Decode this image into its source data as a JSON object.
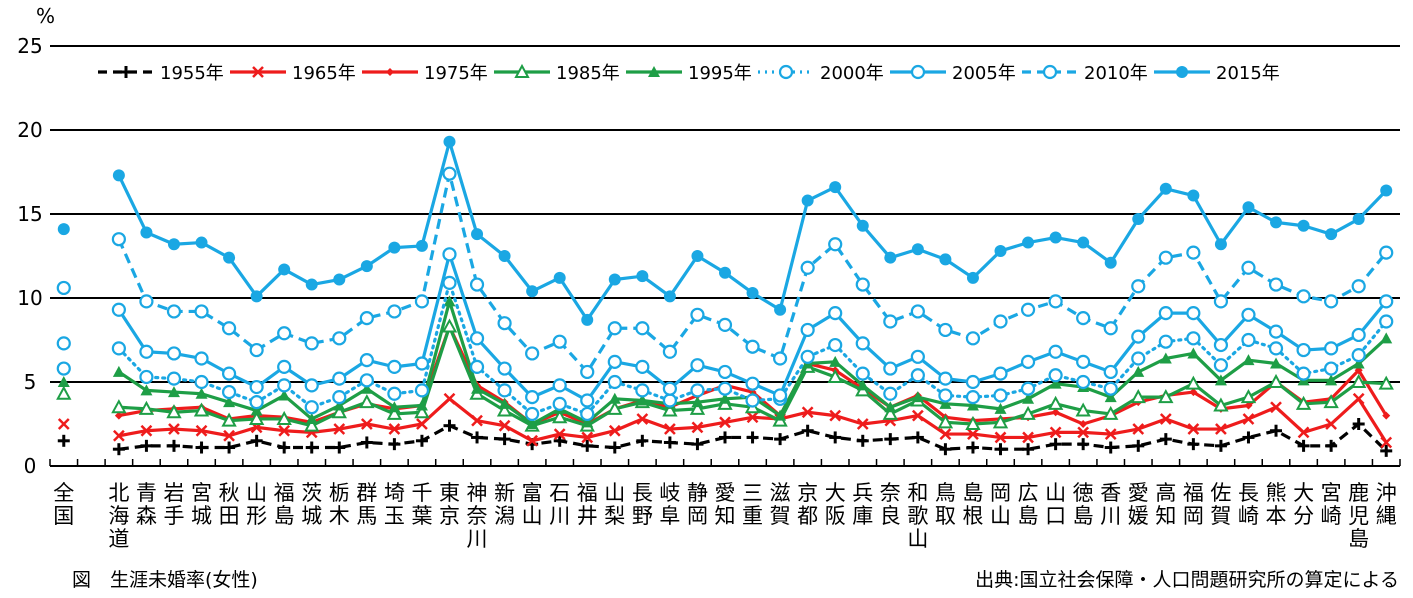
{
  "chart_data": {
    "type": "line",
    "title": "",
    "ylabel_unit": "%",
    "ylim": [
      0,
      25
    ],
    "yticks": [
      0,
      5,
      10,
      15,
      20,
      25
    ],
    "grid": true,
    "legend_position": "top",
    "national_label": [
      "全",
      "国"
    ],
    "categories": [
      [
        "北",
        "海",
        "道"
      ],
      [
        "青",
        "森"
      ],
      [
        "岩",
        "手"
      ],
      [
        "宮",
        "城"
      ],
      [
        "秋",
        "田"
      ],
      [
        "山",
        "形"
      ],
      [
        "福",
        "島"
      ],
      [
        "茨",
        "城"
      ],
      [
        "栃",
        "木"
      ],
      [
        "群",
        "馬"
      ],
      [
        "埼",
        "玉"
      ],
      [
        "千",
        "葉"
      ],
      [
        "東",
        "京"
      ],
      [
        "神",
        "奈",
        "川"
      ],
      [
        "新",
        "潟"
      ],
      [
        "富",
        "山"
      ],
      [
        "石",
        "川"
      ],
      [
        "福",
        "井"
      ],
      [
        "山",
        "梨"
      ],
      [
        "長",
        "野"
      ],
      [
        "岐",
        "阜"
      ],
      [
        "静",
        "岡"
      ],
      [
        "愛",
        "知"
      ],
      [
        "三",
        "重"
      ],
      [
        "滋",
        "賀"
      ],
      [
        "京",
        "都"
      ],
      [
        "大",
        "阪"
      ],
      [
        "兵",
        "庫"
      ],
      [
        "奈",
        "良"
      ],
      [
        "和",
        "歌",
        "山"
      ],
      [
        "鳥",
        "取"
      ],
      [
        "島",
        "根"
      ],
      [
        "岡",
        "山"
      ],
      [
        "広",
        "島"
      ],
      [
        "山",
        "口"
      ],
      [
        "徳",
        "島"
      ],
      [
        "香",
        "川"
      ],
      [
        "愛",
        "媛"
      ],
      [
        "高",
        "知"
      ],
      [
        "福",
        "岡"
      ],
      [
        "佐",
        "賀"
      ],
      [
        "長",
        "崎"
      ],
      [
        "熊",
        "本"
      ],
      [
        "大",
        "分"
      ],
      [
        "宮",
        "崎"
      ],
      [
        "鹿",
        "児",
        "島"
      ],
      [
        "沖",
        "縄"
      ]
    ],
    "series": [
      {
        "name": "1955年",
        "color": "#000000",
        "style": "dashed",
        "marker": "plus",
        "national": 1.5,
        "values": [
          1.0,
          1.2,
          1.2,
          1.1,
          1.1,
          1.5,
          1.1,
          1.1,
          1.1,
          1.4,
          1.3,
          1.5,
          2.4,
          1.7,
          1.6,
          1.3,
          1.5,
          1.2,
          1.1,
          1.5,
          1.4,
          1.3,
          1.7,
          1.7,
          1.6,
          2.1,
          1.7,
          1.5,
          1.6,
          1.7,
          1.0,
          1.1,
          1.0,
          1.0,
          1.3,
          1.3,
          1.1,
          1.2,
          1.6,
          1.3,
          1.2,
          1.7,
          2.1,
          1.2,
          1.2,
          2.5,
          0.9
        ]
      },
      {
        "name": "1965年",
        "color": "#ee1c1c",
        "style": "solid",
        "marker": "x",
        "national": 2.5,
        "values": [
          1.8,
          2.1,
          2.2,
          2.1,
          1.8,
          2.3,
          2.1,
          2.0,
          2.2,
          2.5,
          2.2,
          2.5,
          4.0,
          2.7,
          2.4,
          1.5,
          1.9,
          1.7,
          2.1,
          2.8,
          2.2,
          2.3,
          2.6,
          2.9,
          2.8,
          3.2,
          3.0,
          2.5,
          2.7,
          3.0,
          1.9,
          1.9,
          1.7,
          1.7,
          2.0,
          2.0,
          1.9,
          2.2,
          2.8,
          2.2,
          2.2,
          2.8,
          3.5,
          2.0,
          2.5,
          4.0,
          1.4
        ]
      },
      {
        "name": "1975年",
        "color": "#ee1c1c",
        "style": "solid",
        "marker": "diamond",
        "national": 4.3,
        "values": [
          3.0,
          3.3,
          3.4,
          3.5,
          2.8,
          3.0,
          2.9,
          2.6,
          3.2,
          3.7,
          3.4,
          3.6,
          8.3,
          4.8,
          3.8,
          2.5,
          3.2,
          2.5,
          3.4,
          3.9,
          3.5,
          4.2,
          4.8,
          4.4,
          3.0,
          6.1,
          5.7,
          4.6,
          3.5,
          4.2,
          2.9,
          2.7,
          2.8,
          2.9,
          3.2,
          2.5,
          3.0,
          3.8,
          4.2,
          4.4,
          3.4,
          3.6,
          5.0,
          3.8,
          4.0,
          5.7,
          3.0
        ]
      },
      {
        "name": "1985年",
        "color": "#1e9e46",
        "style": "solid",
        "marker": "triangle-open",
        "national": 4.3,
        "values": [
          3.5,
          3.4,
          3.2,
          3.3,
          2.7,
          2.8,
          2.8,
          2.4,
          3.2,
          3.8,
          3.1,
          3.2,
          8.3,
          4.3,
          3.3,
          2.4,
          2.9,
          2.4,
          3.4,
          3.8,
          3.3,
          3.4,
          3.7,
          3.5,
          2.7,
          5.9,
          5.3,
          4.5,
          3.1,
          3.9,
          2.6,
          2.5,
          2.6,
          3.1,
          3.7,
          3.3,
          3.1,
          4.1,
          4.1,
          4.9,
          3.6,
          4.1,
          5.0,
          3.7,
          3.8,
          5.0,
          4.9
        ]
      },
      {
        "name": "1995年",
        "color": "#1e9e46",
        "style": "solid",
        "marker": "triangle-filled",
        "national": 5.0,
        "values": [
          5.6,
          4.5,
          4.4,
          4.3,
          3.8,
          3.3,
          4.2,
          2.8,
          3.6,
          4.6,
          3.5,
          3.6,
          9.8,
          4.6,
          3.7,
          2.5,
          3.4,
          2.6,
          4.0,
          3.9,
          3.7,
          3.8,
          4.0,
          4.1,
          3.0,
          6.1,
          6.2,
          4.8,
          3.5,
          4.1,
          3.7,
          3.6,
          3.4,
          4.0,
          4.9,
          4.7,
          4.1,
          5.6,
          6.4,
          6.7,
          5.1,
          6.3,
          6.1,
          5.1,
          5.1,
          6.1,
          7.6
        ]
      },
      {
        "name": "2000年",
        "color": "#1aa7e3",
        "style": "dotted",
        "marker": "circle-open",
        "national": 5.8,
        "values": [
          7.0,
          5.3,
          5.2,
          5.0,
          4.4,
          3.8,
          4.8,
          3.5,
          4.1,
          5.1,
          4.3,
          4.5,
          10.9,
          5.9,
          4.5,
          3.1,
          3.7,
          3.1,
          5.0,
          4.5,
          3.9,
          4.5,
          4.6,
          3.9,
          4.0,
          6.5,
          7.2,
          5.5,
          4.3,
          5.4,
          4.2,
          4.1,
          4.2,
          4.6,
          5.4,
          5.0,
          4.6,
          6.4,
          7.4,
          7.6,
          6.0,
          7.5,
          7.0,
          5.5,
          5.8,
          6.6,
          8.6
        ]
      },
      {
        "name": "2005年",
        "color": "#1aa7e3",
        "style": "solid",
        "marker": "circle-open",
        "national": 7.3,
        "values": [
          9.3,
          6.8,
          6.7,
          6.4,
          5.5,
          4.7,
          5.9,
          4.8,
          5.2,
          6.3,
          5.9,
          6.1,
          12.6,
          7.6,
          5.8,
          4.1,
          4.8,
          3.9,
          6.2,
          5.9,
          4.6,
          6.0,
          5.6,
          4.9,
          4.2,
          8.1,
          9.1,
          7.3,
          5.8,
          6.5,
          5.2,
          5.0,
          5.5,
          6.2,
          6.8,
          6.2,
          5.6,
          7.7,
          9.1,
          9.1,
          7.2,
          9.0,
          8.0,
          6.9,
          7.0,
          7.8,
          9.8
        ]
      },
      {
        "name": "2010年",
        "color": "#1aa7e3",
        "style": "dashed",
        "marker": "circle-open",
        "national": 10.6,
        "values": [
          13.5,
          9.8,
          9.2,
          9.2,
          8.2,
          6.9,
          7.9,
          7.3,
          7.6,
          8.8,
          9.2,
          9.8,
          17.4,
          10.8,
          8.5,
          6.7,
          7.4,
          5.6,
          8.2,
          8.2,
          6.8,
          9.0,
          8.4,
          7.1,
          6.4,
          11.8,
          13.2,
          10.8,
          8.6,
          9.2,
          8.1,
          7.6,
          8.6,
          9.3,
          9.8,
          8.8,
          8.2,
          10.7,
          12.4,
          12.7,
          9.8,
          11.8,
          10.8,
          10.1,
          9.8,
          10.7,
          12.7
        ]
      },
      {
        "name": "2015年",
        "color": "#1aa7e3",
        "style": "solid",
        "marker": "circle-filled",
        "national": 14.1,
        "values": [
          17.3,
          13.9,
          13.2,
          13.3,
          12.4,
          10.1,
          11.7,
          10.8,
          11.1,
          11.9,
          13.0,
          13.1,
          19.3,
          13.8,
          12.5,
          10.4,
          11.2,
          8.7,
          11.1,
          11.3,
          10.1,
          12.5,
          11.5,
          10.3,
          9.3,
          15.8,
          16.6,
          14.3,
          12.4,
          12.9,
          12.3,
          11.2,
          12.8,
          13.3,
          13.6,
          13.3,
          12.1,
          14.7,
          16.5,
          16.1,
          13.2,
          15.4,
          14.5,
          14.3,
          13.8,
          14.7,
          16.4
        ]
      }
    ]
  },
  "unit_label": "%",
  "caption_left": "図　生涯未婚率(女性)",
  "caption_right": "出典:国立社会保障・人口問題研究所の算定による"
}
